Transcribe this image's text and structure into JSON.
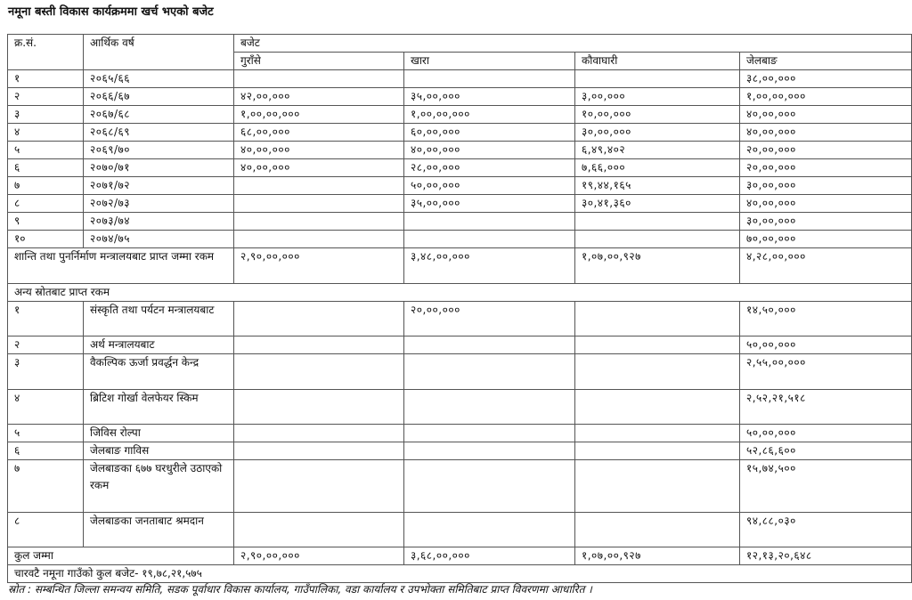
{
  "title": "नमूना बस्ती विकास कार्यक्रममा खर्च भएको बजेट",
  "headers": {
    "serial": "क्र.सं.",
    "fiscal_year": "आर्थिक वर्ष",
    "budget": "बजेट",
    "villages": [
      "गुराँसे",
      "खारा",
      "कौवाघारी",
      "जेलबाङ"
    ]
  },
  "year_rows": [
    {
      "sn": "१",
      "year": "२०६५/६६",
      "values": [
        "",
        "",
        "",
        "३८,००,०००"
      ]
    },
    {
      "sn": "२",
      "year": "२०६६/६७",
      "values": [
        "४२,००,०००",
        "३५,००,०००",
        "३,००,०००",
        "१,००,००,०००"
      ]
    },
    {
      "sn": "३",
      "year": "२०६७/६८",
      "values": [
        "१,००,००,०००",
        "१,००,००,०००",
        "१०,००,०००",
        "४०,००,०००"
      ]
    },
    {
      "sn": "४",
      "year": "२०६८/६९",
      "values": [
        "६८,००,०००",
        "६०,००,०००",
        "३०,००,०००",
        "४०,००,०००"
      ]
    },
    {
      "sn": "५",
      "year": "२०६९/७०",
      "values": [
        "४०,००,०००",
        "४०,००,०००",
        "६,४९,४०२",
        "२०,००,०००"
      ]
    },
    {
      "sn": "६",
      "year": "२०७०/७१",
      "values": [
        "४०,००,०००",
        "२८,००,०००",
        "७,६६,०००",
        "२०,००,०००"
      ]
    },
    {
      "sn": "७",
      "year": "२०७१/७२",
      "values": [
        "",
        "५०,००,०००",
        "१९,४४,१६५",
        "३०,००,०००"
      ]
    },
    {
      "sn": "८",
      "year": "२०७२/७३",
      "values": [
        "",
        "३५,००,०००",
        "३०,४१,३६०",
        "४०,००,०००"
      ]
    },
    {
      "sn": "९",
      "year": "२०७३/७४",
      "values": [
        "",
        "",
        "",
        "३०,००,०००"
      ]
    },
    {
      "sn": "१०",
      "year": "२०७४/७५",
      "values": [
        "",
        "",
        "",
        "७०,००,०००"
      ]
    }
  ],
  "ministry_total": {
    "label": "शान्ति तथा पुनर्निर्माण मन्त्रालयबाट प्राप्त जम्मा रकम",
    "values": [
      "२,९०,००,०००",
      "३,४८,००,०००",
      "१,०७,००,९२७",
      "४,२८,००,०००"
    ]
  },
  "other_sources_label": "अन्य स्रोतबाट प्राप्त रकम",
  "other_rows": [
    {
      "sn": "१",
      "source": "संस्कृति तथा पर्यटन मन्त्रालयबाट",
      "values": [
        "",
        "२०,००,०००",
        "",
        "१४,५०,०००"
      ]
    },
    {
      "sn": "२",
      "source": "अर्थ मन्त्रालयबाट",
      "values": [
        "",
        "",
        "",
        "५०,००,०००"
      ]
    },
    {
      "sn": "३",
      "source": "वैकल्पिक ऊर्जा प्रवर्द्धन केन्द्र",
      "values": [
        "",
        "",
        "",
        "२,५५,००,०००"
      ]
    },
    {
      "sn": "४",
      "source": "ब्रिटिश गोर्खा वेलफेयर स्किम",
      "values": [
        "",
        "",
        "",
        "२,५२,२१,५१८"
      ]
    },
    {
      "sn": "५",
      "source": "जिविस रोल्पा",
      "values": [
        "",
        "",
        "",
        "५०,००,०००"
      ]
    },
    {
      "sn": "६",
      "source": "जेलबाङ गाविस",
      "values": [
        "",
        "",
        "",
        "५२,८६,६००"
      ]
    },
    {
      "sn": "७",
      "source": "जेलबाङका ६७७ घरधुरीले उठाएको रकम",
      "values": [
        "",
        "",
        "",
        "१५,७४,५००"
      ]
    },
    {
      "sn": "८",
      "source": "जेलबाङका जनताबाट श्रमदान",
      "values": [
        "",
        "",
        "",
        "९४,८८,०३०"
      ]
    }
  ],
  "grand_total": {
    "label": "कुल जम्मा",
    "values": [
      "२,९०,००,०००",
      "३,६८,००,०००",
      "१,०७,००,९२७",
      "१२,१३,२०,६४८"
    ]
  },
  "four_villages_total": "चारवटै नमूना गाउँको कुल बजेट- १९,७८,२१,५७५",
  "source_note": "स्रोत : सम्बन्धित जिल्ला समन्वय समिति, सडक पूर्वाधार विकास कार्यालय, गाउँपालिका, वडा कार्यालय र उपभोक्ता समितिबाट प्राप्त विवरणमा आधारित ।"
}
